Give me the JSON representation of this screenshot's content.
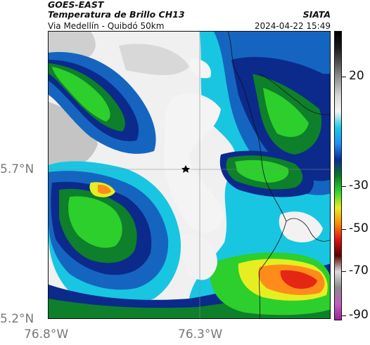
{
  "header": {
    "title_line1": "GOES-EAST",
    "title_line2": "Temperatura de Brillo CH13",
    "subtitle": "Via Medellín - Quibdó 50km",
    "source": "SIATA",
    "timestamp": "2024-04-22 15:49"
  },
  "axes": {
    "lat_labels": [
      "5.7°N",
      "5.2°N"
    ],
    "lon_labels": [
      "76.8°W",
      "76.3°W"
    ]
  },
  "colorbar": {
    "ticks": [
      "20",
      "-30",
      "-50",
      "-70",
      "-90"
    ],
    "stops": [
      "#000000",
      "#1a1a1a",
      "#555555",
      "#999999",
      "#d8d8d8",
      "#f4f4f4",
      "#19c9e6",
      "#1e90ff",
      "#0a2a9a",
      "#0a7a1e",
      "#2fd42f",
      "#e8f020",
      "#ff8c00",
      "#e01010",
      "#5a0000",
      "#dcdcdc",
      "#8a8a8a",
      "#c060c0",
      "#a020a0"
    ]
  },
  "map": {
    "marker_icon": "star-icon",
    "colors": {
      "clear": "#f2f2f2",
      "light_gray": "#cfcfcf",
      "cyan": "#18c6e2",
      "blue": "#1565c0",
      "navy": "#0b2a8c",
      "dark_green": "#0e7f2a",
      "green": "#2ccf2c",
      "yellow": "#e6ee22",
      "orange": "#ff8c1a",
      "red": "#e52612"
    }
  }
}
